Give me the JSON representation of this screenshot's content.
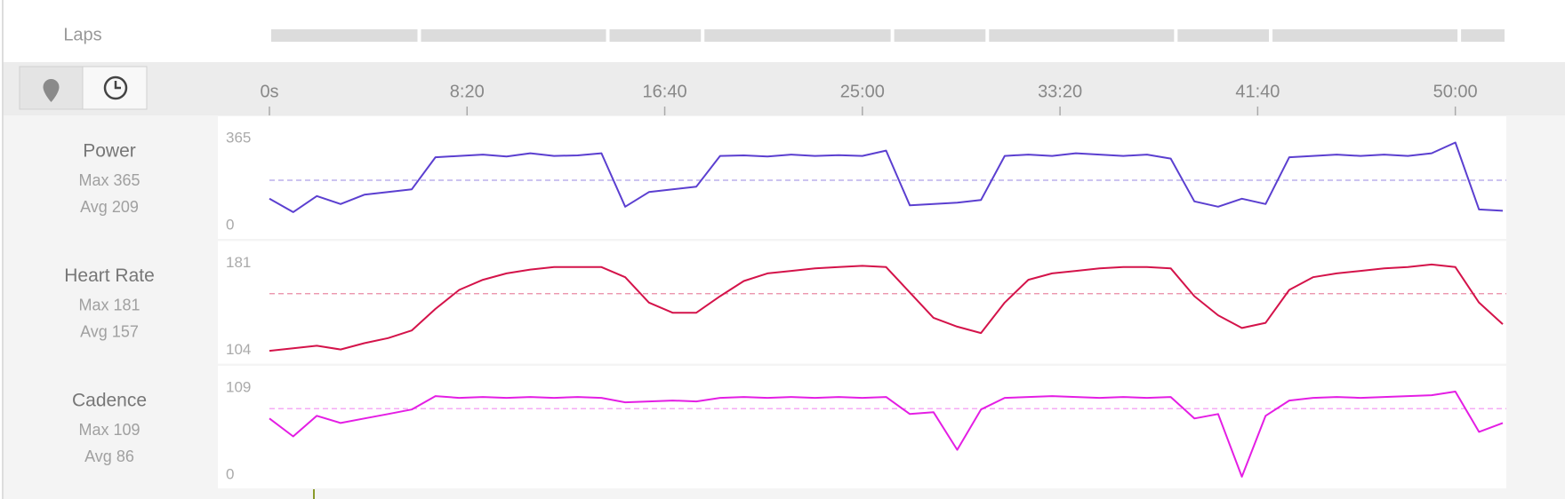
{
  "laps": {
    "label": "Laps",
    "boundaries": [
      0,
      379,
      856,
      1096,
      1576,
      1816,
      2293,
      2533,
      3010,
      3129
    ]
  },
  "time_axis": {
    "xlim": [
      0,
      3129
    ],
    "xticks": [
      {
        "value": 0,
        "label": "0s"
      },
      {
        "value": 500,
        "label": "8:20"
      },
      {
        "value": 1000,
        "label": "16:40"
      },
      {
        "value": 1500,
        "label": "25:00"
      },
      {
        "value": 2000,
        "label": "33:20"
      },
      {
        "value": 2500,
        "label": "41:40"
      },
      {
        "value": 3000,
        "label": "50:00"
      }
    ]
  },
  "chart_data": [
    {
      "type": "line",
      "title": "Power",
      "stats": [
        {
          "label": "Max",
          "value": 365
        },
        {
          "label": "Avg",
          "value": 209
        }
      ],
      "color": "#5b3fd0",
      "ylim": [
        0,
        365
      ],
      "yticks": [
        0,
        365
      ],
      "x": [
        0,
        60,
        120,
        180,
        240,
        300,
        360,
        420,
        480,
        540,
        600,
        660,
        720,
        780,
        840,
        900,
        960,
        1020,
        1080,
        1140,
        1200,
        1260,
        1320,
        1380,
        1440,
        1500,
        1560,
        1620,
        1680,
        1740,
        1800,
        1860,
        1920,
        1980,
        2040,
        2100,
        2160,
        2220,
        2280,
        2340,
        2400,
        2460,
        2520,
        2580,
        2640,
        2700,
        2760,
        2820,
        2880,
        2940,
        3000,
        3060,
        3120
      ],
      "values": [
        140,
        90,
        150,
        120,
        155,
        165,
        175,
        295,
        300,
        305,
        298,
        310,
        300,
        302,
        310,
        110,
        165,
        175,
        185,
        300,
        302,
        298,
        305,
        300,
        303,
        300,
        320,
        115,
        120,
        125,
        135,
        300,
        305,
        300,
        310,
        305,
        300,
        305,
        290,
        130,
        110,
        140,
        120,
        295,
        300,
        305,
        300,
        305,
        300,
        310,
        350,
        100,
        95
      ]
    },
    {
      "type": "line",
      "title": "Heart Rate",
      "stats": [
        {
          "label": "Max",
          "value": 181
        },
        {
          "label": "Avg",
          "value": 157
        }
      ],
      "color": "#d4134a",
      "ylim": [
        104,
        181
      ],
      "yticks": [
        104,
        181
      ],
      "x": [
        0,
        60,
        120,
        180,
        240,
        300,
        360,
        420,
        480,
        540,
        600,
        660,
        720,
        780,
        840,
        900,
        960,
        1020,
        1080,
        1140,
        1200,
        1260,
        1320,
        1380,
        1440,
        1500,
        1560,
        1620,
        1680,
        1740,
        1800,
        1860,
        1920,
        1980,
        2040,
        2100,
        2160,
        2220,
        2280,
        2340,
        2400,
        2460,
        2520,
        2580,
        2640,
        2700,
        2760,
        2820,
        2880,
        2940,
        3000,
        3060,
        3120
      ],
      "values": [
        112,
        114,
        116,
        113,
        118,
        122,
        128,
        145,
        160,
        168,
        173,
        176,
        178,
        178,
        178,
        170,
        150,
        142,
        142,
        155,
        167,
        173,
        175,
        177,
        178,
        179,
        178,
        158,
        138,
        131,
        126,
        150,
        168,
        173,
        175,
        177,
        178,
        178,
        177,
        155,
        140,
        130,
        134,
        160,
        170,
        173,
        175,
        177,
        178,
        180,
        178,
        150,
        133
      ]
    },
    {
      "type": "line",
      "title": "Cadence",
      "stats": [
        {
          "label": "Max",
          "value": 109
        },
        {
          "label": "Avg",
          "value": 86
        }
      ],
      "color": "#e41ee4",
      "ylim": [
        0,
        109
      ],
      "yticks": [
        0,
        109
      ],
      "x": [
        0,
        60,
        120,
        180,
        240,
        300,
        360,
        420,
        480,
        540,
        600,
        660,
        720,
        780,
        840,
        900,
        960,
        1020,
        1080,
        1140,
        1200,
        1260,
        1320,
        1380,
        1440,
        1500,
        1560,
        1620,
        1680,
        1740,
        1800,
        1860,
        1920,
        1980,
        2040,
        2100,
        2160,
        2220,
        2280,
        2340,
        2400,
        2460,
        2520,
        2580,
        2640,
        2700,
        2760,
        2820,
        2880,
        2940,
        3000,
        3060,
        3120
      ],
      "values": [
        75,
        55,
        78,
        70,
        75,
        80,
        85,
        100,
        98,
        99,
        98,
        99,
        98,
        99,
        98,
        93,
        94,
        95,
        94,
        98,
        99,
        98,
        99,
        98,
        99,
        98,
        99,
        80,
        82,
        40,
        85,
        98,
        99,
        100,
        99,
        98,
        99,
        98,
        99,
        75,
        80,
        10,
        78,
        95,
        98,
        99,
        98,
        99,
        100,
        101,
        105,
        60,
        70
      ]
    }
  ]
}
